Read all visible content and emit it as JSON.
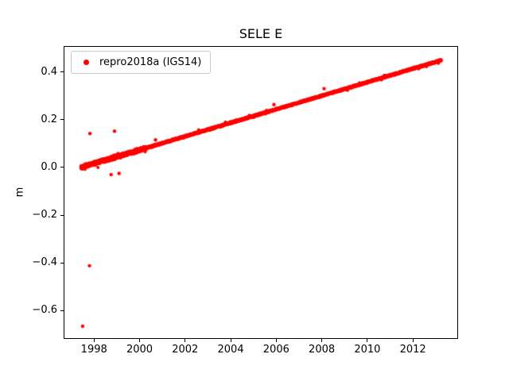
{
  "chart_data": {
    "type": "scatter",
    "title": "SELE E",
    "xlabel": "",
    "ylabel": "m",
    "legend_label": "repro2018a (IGS14)",
    "legend_position": "upper left",
    "marker_color": "#ff0000",
    "marker_radius_px": 2,
    "grid": false,
    "background": "#ffffff",
    "xlim": [
      1996.7,
      2013.95
    ],
    "ylim": [
      -0.715,
      0.505
    ],
    "x_ticks": [
      {
        "value": 1998,
        "label": "1998"
      },
      {
        "value": 2000,
        "label": "2000"
      },
      {
        "value": 2002,
        "label": "2002"
      },
      {
        "value": 2004,
        "label": "2004"
      },
      {
        "value": 2006,
        "label": "2006"
      },
      {
        "value": 2008,
        "label": "2008"
      },
      {
        "value": 2010,
        "label": "2010"
      },
      {
        "value": 2012,
        "label": "2012"
      }
    ],
    "y_ticks": [
      {
        "value": 0.4,
        "label": "0.4"
      },
      {
        "value": 0.2,
        "label": "0.2"
      },
      {
        "value": 0.0,
        "label": "0.0"
      },
      {
        "value": -0.2,
        "label": "−0.2"
      },
      {
        "value": -0.4,
        "label": "−0.4"
      },
      {
        "value": -0.6,
        "label": "−0.6"
      }
    ],
    "series": [
      {
        "name": "repro2018a (IGS14)",
        "color": "#ff0000",
        "trend": {
          "x_start": 1997.42,
          "y_start": 0.0,
          "x_end": 2013.25,
          "y_end": 0.449,
          "n_points": 2600,
          "noise_amplitude": 0.004,
          "early_noise_until": 2000.3,
          "early_noise_factor": 2.2
        },
        "outliers": [
          [
            1997.5,
            -0.665
          ],
          [
            1997.8,
            -0.412
          ],
          [
            1997.82,
            0.142
          ],
          [
            1998.9,
            0.152
          ],
          [
            1998.75,
            -0.03
          ],
          [
            1999.1,
            -0.025
          ],
          [
            2000.7,
            0.115
          ],
          [
            2005.9,
            0.263
          ],
          [
            2008.1,
            0.33
          ]
        ]
      }
    ]
  }
}
